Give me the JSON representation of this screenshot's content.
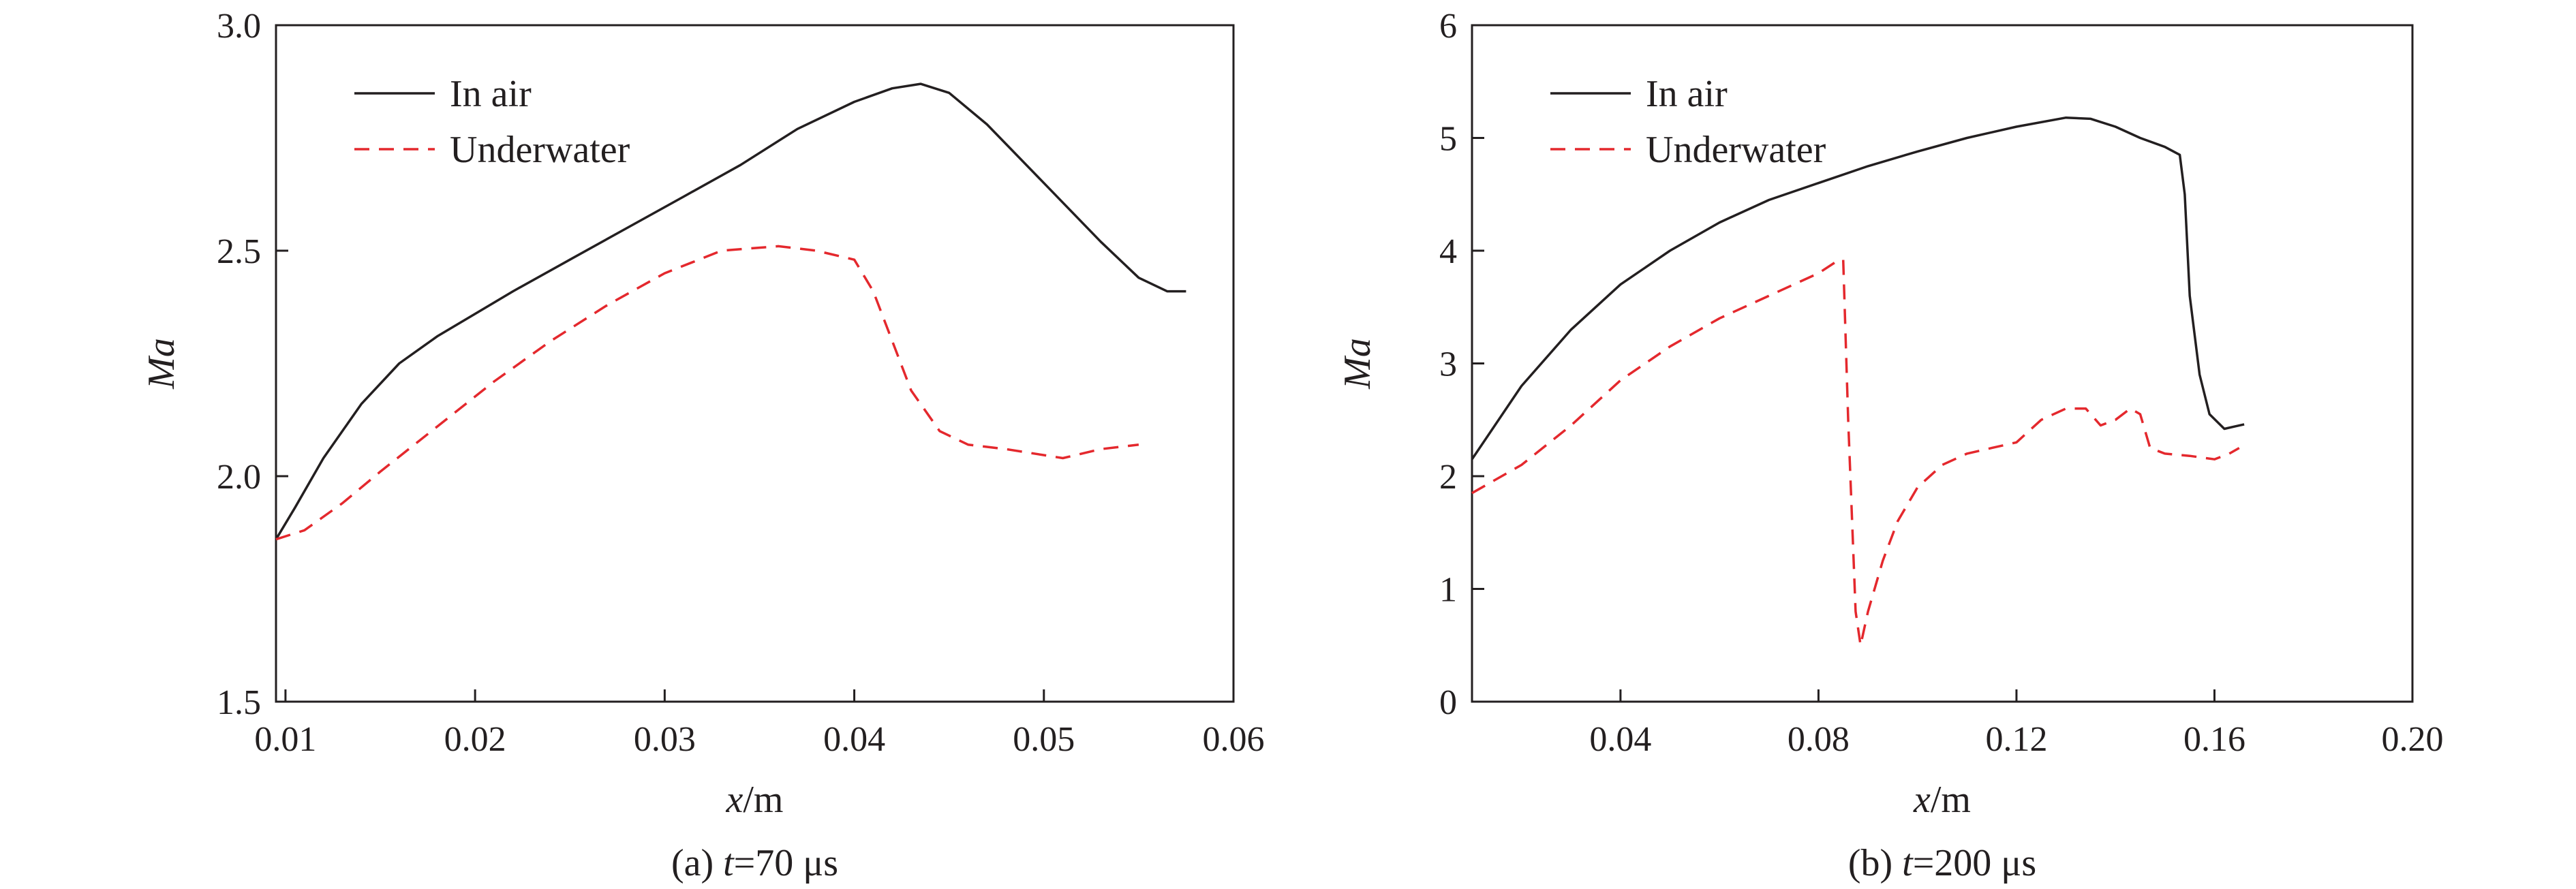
{
  "chart_data": [
    {
      "type": "line",
      "caption": {
        "prefix": "(a) ",
        "var": "t",
        "rest": "=70 μs"
      },
      "xlabel": {
        "var": "x",
        "unit": "/m"
      },
      "ylabel": "Ma",
      "xlim": [
        0.0095,
        0.06
      ],
      "ylim": [
        1.5,
        3.0
      ],
      "xticks": [
        0.01,
        0.02,
        0.03,
        0.04,
        0.05,
        0.06
      ],
      "xtick_labels": [
        "0.01",
        "0.02",
        "0.03",
        "0.04",
        "0.05",
        "0.06"
      ],
      "yticks": [
        1.5,
        2.0,
        2.5,
        3.0
      ],
      "ytick_labels": [
        "1.5",
        "2.0",
        "2.5",
        "3.0"
      ],
      "legend_position": "top-left",
      "series": [
        {
          "name": "In air",
          "style": "solid",
          "color": "#231f20",
          "x": [
            0.0095,
            0.0105,
            0.012,
            0.014,
            0.016,
            0.018,
            0.02,
            0.022,
            0.025,
            0.028,
            0.031,
            0.034,
            0.037,
            0.04,
            0.042,
            0.0435,
            0.045,
            0.047,
            0.05,
            0.053,
            0.055,
            0.0565,
            0.057,
            0.0575
          ],
          "y": [
            1.86,
            1.93,
            2.04,
            2.16,
            2.25,
            2.31,
            2.36,
            2.41,
            2.48,
            2.55,
            2.62,
            2.69,
            2.77,
            2.83,
            2.86,
            2.87,
            2.85,
            2.78,
            2.65,
            2.52,
            2.44,
            2.41,
            2.41,
            2.41
          ]
        },
        {
          "name": "Underwater",
          "style": "dashed",
          "color": "#e4282d",
          "x": [
            0.0095,
            0.011,
            0.013,
            0.015,
            0.018,
            0.021,
            0.024,
            0.027,
            0.03,
            0.033,
            0.036,
            0.038,
            0.04,
            0.041,
            0.042,
            0.043,
            0.0445,
            0.046,
            0.048,
            0.051,
            0.053,
            0.055
          ],
          "y": [
            1.86,
            1.88,
            1.94,
            2.01,
            2.11,
            2.21,
            2.3,
            2.38,
            2.45,
            2.5,
            2.51,
            2.5,
            2.48,
            2.41,
            2.3,
            2.19,
            2.1,
            2.07,
            2.06,
            2.04,
            2.06,
            2.07
          ]
        }
      ]
    },
    {
      "type": "line",
      "caption": {
        "prefix": "(b) ",
        "var": "t",
        "rest": "=200 μs"
      },
      "xlabel": {
        "var": "x",
        "unit": "/m"
      },
      "ylabel": "Ma",
      "xlim": [
        0.01,
        0.2
      ],
      "ylim": [
        0,
        6
      ],
      "xticks": [
        0.04,
        0.08,
        0.12,
        0.16,
        0.2
      ],
      "xtick_labels": [
        "0.04",
        "0.08",
        "0.12",
        "0.16",
        "0.20"
      ],
      "yticks": [
        0,
        1,
        2,
        3,
        4,
        5,
        6
      ],
      "ytick_labels": [
        "0",
        "1",
        "2",
        "3",
        "4",
        "5",
        "6"
      ],
      "legend_position": "top-left",
      "series": [
        {
          "name": "In air",
          "style": "solid",
          "color": "#231f20",
          "x": [
            0.01,
            0.02,
            0.03,
            0.04,
            0.05,
            0.06,
            0.07,
            0.08,
            0.09,
            0.1,
            0.11,
            0.12,
            0.13,
            0.135,
            0.14,
            0.145,
            0.15,
            0.153,
            0.154,
            0.155,
            0.157,
            0.159,
            0.162,
            0.164,
            0.166
          ],
          "y": [
            2.15,
            2.8,
            3.3,
            3.7,
            4.0,
            4.25,
            4.45,
            4.6,
            4.75,
            4.88,
            5.0,
            5.1,
            5.18,
            5.17,
            5.1,
            5.0,
            4.92,
            4.85,
            4.5,
            3.6,
            2.9,
            2.55,
            2.42,
            2.44,
            2.46
          ]
        },
        {
          "name": "Underwater",
          "style": "dashed",
          "color": "#e4282d",
          "x": [
            0.01,
            0.02,
            0.03,
            0.04,
            0.05,
            0.06,
            0.07,
            0.08,
            0.0835,
            0.085,
            0.086,
            0.0875,
            0.0885,
            0.09,
            0.093,
            0.096,
            0.1,
            0.105,
            0.11,
            0.115,
            0.12,
            0.125,
            0.13,
            0.134,
            0.137,
            0.14,
            0.143,
            0.145,
            0.147,
            0.15,
            0.155,
            0.16,
            0.163,
            0.165
          ],
          "y": [
            1.85,
            2.1,
            2.45,
            2.85,
            3.15,
            3.4,
            3.6,
            3.8,
            3.9,
            3.92,
            2.5,
            0.8,
            0.5,
            0.8,
            1.25,
            1.6,
            1.9,
            2.1,
            2.2,
            2.25,
            2.3,
            2.5,
            2.6,
            2.6,
            2.45,
            2.5,
            2.6,
            2.55,
            2.25,
            2.2,
            2.18,
            2.15,
            2.2,
            2.25
          ]
        }
      ]
    }
  ]
}
